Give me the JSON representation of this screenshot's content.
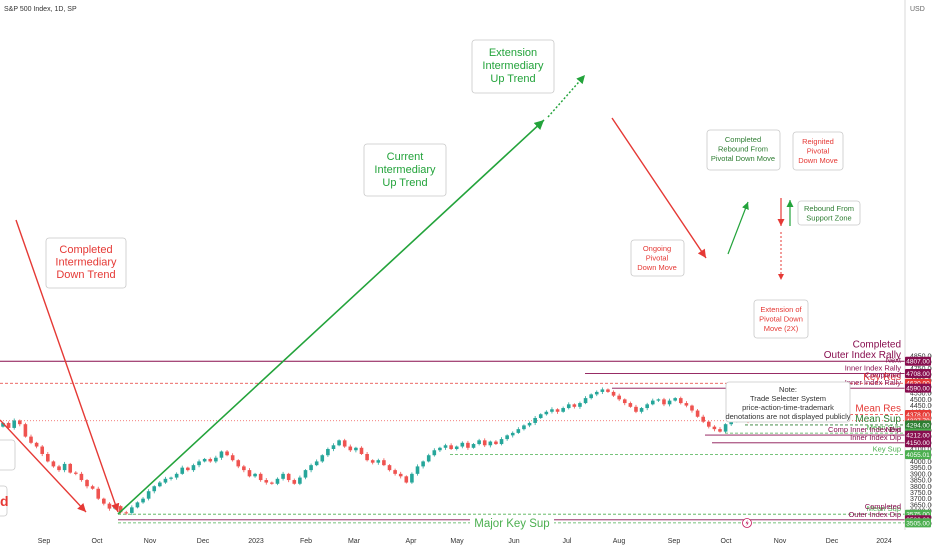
{
  "header": {
    "symbol": "S&P 500 Index, 1D, SP",
    "currency": "USD"
  },
  "colors": {
    "up": "#26a69a",
    "down": "#ef5350",
    "maroon": "#880e4f",
    "green_note": "#2e7d32",
    "trend_green": "#23a33b",
    "trend_red": "#e53935",
    "key_sup": "#4caf50",
    "key_res": "#e53935"
  },
  "y_axis": {
    "min": 3480,
    "max": 4900,
    "ticks": [
      3500,
      3550,
      3600,
      3650,
      3700,
      3750,
      3800,
      3850,
      3900,
      3950,
      4000,
      4050,
      4100,
      4150,
      4200,
      4250,
      4300,
      4350,
      4400,
      4450,
      4500,
      4550,
      4600,
      4650,
      4700,
      4750,
      4800,
      4850
    ]
  },
  "x_axis": {
    "labels": [
      "Sep",
      "Oct",
      "Nov",
      "Dec",
      "2023",
      "Feb",
      "Mar",
      "Apr",
      "May",
      "Jun",
      "Jul",
      "Aug",
      "Sep",
      "Oct",
      "Nov",
      "Dec",
      "2024"
    ]
  },
  "levels": [
    {
      "value": 4807.0,
      "price": "4807.00",
      "label": "Completed\nOuter Index Rally",
      "color": "#880e4f",
      "style": "solid",
      "size": "big"
    },
    {
      "value": 4708.0,
      "price": "4708.00",
      "label": "Next\nInner Index Rally",
      "color": "#880e4f",
      "style": "solid",
      "size": "small"
    },
    {
      "value": 4630.0,
      "price": "4630.00",
      "label": "Key Res",
      "color": "#e53935",
      "style": "dashed",
      "size": "big"
    },
    {
      "value": 4590.0,
      "price": "4590.00",
      "label": "Completed\nInner Index Rally",
      "color": "#880e4f",
      "style": "solid",
      "size": "small"
    },
    {
      "value": 4378.0,
      "price": "4378.00",
      "label": "Mean Res",
      "color": "#e53935",
      "style": "dashed",
      "size": "big"
    },
    {
      "value": 4327.79,
      "price": "4327.79",
      "label": "",
      "color": "#ef5350",
      "style": "dotted",
      "size": "small"
    },
    {
      "value": 4294.0,
      "price": "4294.00",
      "label": "Mean Sup",
      "color": "#2e7d32",
      "style": "dashed",
      "size": "big"
    },
    {
      "value": 4228.0,
      "price": "4228.00",
      "label": "Mean Sup",
      "color": "#4caf50",
      "style": "dashed",
      "size": "small"
    },
    {
      "value": 4212.0,
      "price": "4212.00",
      "label": "Comp Inner Index Dip",
      "color": "#880e4f",
      "style": "solid",
      "size": "small"
    },
    {
      "value": 4150.0,
      "price": "4150.00",
      "label": "Next\nInner Index Dip",
      "color": "#880e4f",
      "style": "solid",
      "size": "small"
    },
    {
      "value": 4055.01,
      "price": "4055.01",
      "label": "Key Sup",
      "color": "#4caf50",
      "style": "dashed",
      "size": "small"
    },
    {
      "value": 3575.0,
      "price": "3575.00",
      "label": "Mean Sup",
      "color": "#4caf50",
      "style": "dashed",
      "size": "small"
    },
    {
      "value": 3530.0,
      "price": "3530.00",
      "label": "Completed\nOuter Index Dip",
      "color": "#880e4f",
      "style": "solid",
      "size": "small"
    },
    {
      "value": 3505.0,
      "price": "3505.00",
      "label": "Major Key Sup",
      "color": "#4caf50",
      "style": "dashed",
      "size": "major"
    }
  ],
  "annotations": {
    "completed_down": "Completed\nIntermediary\nDown Trend",
    "current_up": "Current\nIntermediary\nUp Trend",
    "extension_up": "Extension\nIntermediary\nUp Trend",
    "completed_rebound": "Completed\nRebound From\nPivotal Down Move",
    "reignited": "Reignited\nPivotal\nDown Move",
    "rebound_support": "Rebound From\nSupport Zone",
    "ongoing": "Ongoing\nPivotal\nDown Move",
    "extension_pivotal": "Extension of\nPivotal Down\nMove (2X)",
    "note": "Note:\nTrade Selecter System\nprice-action-time-trademark\ndenotations are not displayed publicly",
    "left_cut": "d"
  },
  "chart_data": {
    "type": "candlestick",
    "title": "S&P 500 Index, 1D, SP",
    "xlabel": "",
    "ylabel": "USD",
    "ylim": [
      3480,
      4900
    ],
    "grid": false,
    "series": [
      {
        "values": [
          [
            4280,
            4310
          ],
          [
            4310,
            4270
          ],
          [
            4270,
            4330
          ],
          [
            4330,
            4300
          ],
          [
            4300,
            4200
          ],
          [
            4200,
            4150
          ],
          [
            4150,
            4120
          ],
          [
            4120,
            4060
          ],
          [
            4060,
            4000
          ],
          [
            4000,
            3960
          ],
          [
            3960,
            3930
          ],
          [
            3930,
            3980
          ],
          [
            3980,
            3910
          ],
          [
            3910,
            3900
          ],
          [
            3900,
            3850
          ],
          [
            3850,
            3800
          ],
          [
            3800,
            3780
          ],
          [
            3780,
            3700
          ],
          [
            3700,
            3660
          ],
          [
            3660,
            3620
          ],
          [
            3620,
            3640
          ],
          [
            3640,
            3590
          ],
          [
            3590,
            3585
          ],
          [
            3585,
            3630
          ],
          [
            3630,
            3670
          ],
          [
            3670,
            3700
          ],
          [
            3700,
            3760
          ],
          [
            3760,
            3800
          ],
          [
            3800,
            3830
          ],
          [
            3830,
            3860
          ],
          [
            3860,
            3870
          ],
          [
            3870,
            3900
          ],
          [
            3900,
            3950
          ],
          [
            3950,
            3930
          ],
          [
            3930,
            3970
          ],
          [
            3970,
            4000
          ],
          [
            4000,
            4020
          ],
          [
            4020,
            4000
          ],
          [
            4000,
            4030
          ],
          [
            4030,
            4080
          ],
          [
            4080,
            4050
          ],
          [
            4050,
            4010
          ],
          [
            4010,
            3960
          ],
          [
            3960,
            3930
          ],
          [
            3930,
            3880
          ],
          [
            3880,
            3900
          ],
          [
            3900,
            3850
          ],
          [
            3850,
            3830
          ],
          [
            3830,
            3820
          ],
          [
            3820,
            3860
          ],
          [
            3860,
            3900
          ],
          [
            3900,
            3850
          ],
          [
            3850,
            3820
          ],
          [
            3820,
            3870
          ],
          [
            3870,
            3930
          ],
          [
            3930,
            3970
          ],
          [
            3970,
            4000
          ],
          [
            4000,
            4050
          ],
          [
            4050,
            4100
          ],
          [
            4100,
            4130
          ],
          [
            4130,
            4170
          ],
          [
            4170,
            4120
          ],
          [
            4120,
            4090
          ],
          [
            4090,
            4110
          ],
          [
            4110,
            4060
          ],
          [
            4060,
            4010
          ],
          [
            4010,
            3990
          ],
          [
            3990,
            4010
          ],
          [
            4010,
            3970
          ],
          [
            3970,
            3930
          ],
          [
            3930,
            3900
          ],
          [
            3900,
            3880
          ],
          [
            3880,
            3830
          ],
          [
            3830,
            3900
          ],
          [
            3900,
            3960
          ],
          [
            3960,
            4000
          ],
          [
            4000,
            4050
          ],
          [
            4050,
            4090
          ],
          [
            4090,
            4110
          ],
          [
            4110,
            4130
          ],
          [
            4130,
            4100
          ],
          [
            4100,
            4120
          ],
          [
            4120,
            4150
          ],
          [
            4150,
            4110
          ],
          [
            4110,
            4140
          ],
          [
            4140,
            4170
          ],
          [
            4170,
            4130
          ],
          [
            4130,
            4160
          ],
          [
            4160,
            4140
          ],
          [
            4140,
            4180
          ],
          [
            4180,
            4210
          ],
          [
            4210,
            4230
          ],
          [
            4230,
            4260
          ],
          [
            4260,
            4290
          ],
          [
            4290,
            4310
          ],
          [
            4310,
            4350
          ],
          [
            4350,
            4380
          ],
          [
            4380,
            4400
          ],
          [
            4400,
            4420
          ],
          [
            4420,
            4400
          ],
          [
            4400,
            4430
          ],
          [
            4430,
            4460
          ],
          [
            4460,
            4440
          ],
          [
            4440,
            4470
          ],
          [
            4470,
            4510
          ],
          [
            4510,
            4540
          ],
          [
            4540,
            4560
          ],
          [
            4560,
            4580
          ],
          [
            4580,
            4560
          ],
          [
            4560,
            4530
          ],
          [
            4530,
            4500
          ],
          [
            4500,
            4470
          ],
          [
            4470,
            4440
          ],
          [
            4440,
            4400
          ],
          [
            4400,
            4430
          ],
          [
            4430,
            4460
          ],
          [
            4460,
            4490
          ],
          [
            4490,
            4500
          ],
          [
            4500,
            4460
          ],
          [
            4460,
            4490
          ],
          [
            4490,
            4510
          ],
          [
            4510,
            4470
          ],
          [
            4470,
            4450
          ],
          [
            4450,
            4410
          ],
          [
            4410,
            4360
          ],
          [
            4360,
            4320
          ],
          [
            4320,
            4280
          ],
          [
            4280,
            4260
          ],
          [
            4260,
            4240
          ],
          [
            4240,
            4300
          ],
          [
            4300,
            4330
          ],
          [
            4330,
            4360
          ],
          [
            4360,
            4340
          ],
          [
            4340,
            4320
          ]
        ]
      }
    ]
  }
}
